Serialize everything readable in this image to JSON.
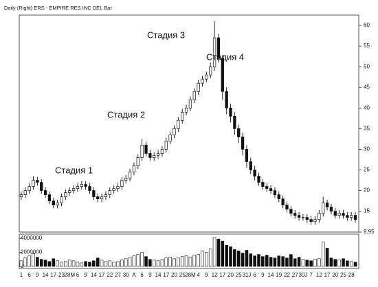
{
  "chart_data": {
    "type": "candlestick",
    "title": "Daily (Right) ERS - EMPIRE RES INC DEL Bar",
    "annotations": [
      "Стадия 1",
      "Стадия 2",
      "Стадия 3",
      "Стадия 4"
    ],
    "categories": [
      "1",
      null,
      "6",
      null,
      "9",
      null,
      "14",
      null,
      "17",
      null,
      "23",
      null,
      "28M",
      null,
      "6",
      null,
      "9",
      null,
      "14",
      null,
      "17",
      null,
      "22",
      null,
      "27",
      null,
      "30",
      null,
      "A",
      null,
      "6",
      null,
      "9",
      null,
      "14",
      null,
      "17",
      null,
      "20",
      null,
      "25",
      null,
      "28M",
      null,
      "4",
      null,
      "9",
      null,
      "12",
      null,
      "17",
      null,
      "20",
      null,
      "25",
      null,
      "31J",
      null,
      "6",
      null,
      "9",
      null,
      "14",
      null,
      "19",
      null,
      "22",
      null,
      "27",
      null,
      "30J",
      null,
      "7",
      null,
      "12",
      null,
      "17",
      null,
      "20",
      null,
      "25",
      null,
      "28",
      null
    ],
    "open": [
      18.5,
      19,
      20,
      21,
      22.5,
      22,
      20,
      19,
      17.5,
      16.5,
      17,
      18.5,
      19.5,
      20,
      20.5,
      21,
      21.5,
      21,
      20,
      18.5,
      18,
      18.5,
      19,
      20,
      20.5,
      21,
      22.5,
      23,
      24.5,
      26,
      28,
      31,
      29,
      28,
      28.5,
      29,
      30,
      32,
      33.5,
      35,
      37,
      39,
      40,
      42,
      44,
      46,
      47,
      48,
      50,
      57,
      52,
      44,
      40,
      38,
      35,
      33,
      30,
      27,
      25,
      23.5,
      22,
      21,
      20.5,
      20,
      19,
      18,
      16.5,
      15.5,
      14.5,
      14,
      13.5,
      13.5,
      13,
      12.5,
      13,
      14.5,
      17,
      16,
      15,
      14,
      14.5,
      14,
      13.5,
      14
    ],
    "high": [
      19.8,
      20.8,
      21.8,
      23.5,
      23.3,
      22.8,
      20.8,
      19.8,
      18.3,
      17.8,
      19.3,
      20.3,
      20.8,
      21.3,
      21.8,
      22.3,
      22.3,
      21.8,
      20.8,
      19.3,
      19.3,
      19.8,
      20.8,
      21.3,
      21.8,
      23.3,
      23.8,
      25.3,
      26.8,
      28.8,
      32.5,
      31.8,
      29.8,
      29.3,
      29.8,
      30.8,
      32.8,
      34.3,
      35.8,
      37.8,
      39.8,
      40.8,
      42.8,
      44.8,
      46.8,
      47.8,
      48.8,
      51,
      61,
      58,
      52.8,
      45,
      41,
      39,
      36,
      34,
      31,
      28,
      26,
      24.3,
      22.8,
      21.8,
      21.3,
      20.8,
      19.8,
      18.8,
      17.3,
      16.3,
      15.3,
      14.8,
      14.3,
      14.3,
      13.8,
      13.8,
      15.3,
      18.5,
      17.8,
      16.8,
      15.8,
      15.3,
      15.3,
      14.8,
      14.8,
      14.8
    ],
    "low": [
      17.7,
      18.2,
      19.2,
      20.2,
      21.2,
      19.2,
      18.2,
      16.7,
      15.7,
      15.7,
      16.2,
      17.7,
      18.7,
      19.2,
      19.7,
      20.2,
      20.2,
      19.2,
      17.7,
      17.2,
      17.2,
      17.7,
      18.2,
      19.2,
      19.7,
      20.2,
      21.7,
      22.2,
      23.7,
      25.2,
      27.2,
      28.2,
      27.2,
      27.2,
      27.7,
      28.2,
      29.2,
      31.2,
      32.7,
      34.2,
      36.2,
      38.2,
      39.2,
      41.2,
      43.2,
      45.2,
      46.2,
      47.2,
      49,
      51,
      42,
      38.5,
      36.5,
      33.5,
      31.5,
      28.5,
      25.5,
      24,
      22.5,
      21.2,
      20.2,
      19.7,
      19.2,
      18.2,
      17.2,
      15.7,
      14.7,
      13.7,
      13.2,
      12.7,
      12.7,
      12.2,
      11.7,
      11.7,
      12.2,
      13.7,
      15.2,
      14.2,
      13.2,
      13.2,
      13.2,
      12.7,
      12.7,
      12.2
    ],
    "close": [
      19,
      20,
      21,
      22.5,
      22,
      20,
      19,
      17.5,
      16.5,
      17,
      18.5,
      19.5,
      20,
      20.5,
      21,
      21.5,
      21,
      20,
      18.5,
      18,
      18.5,
      19,
      20,
      20.5,
      21,
      22.5,
      23,
      24.5,
      26,
      28,
      31,
      29,
      28,
      28.5,
      29,
      30,
      32,
      33.5,
      35,
      37,
      39,
      40,
      42,
      44,
      46,
      47,
      48,
      50,
      57,
      52,
      44,
      40,
      38,
      35,
      33,
      30,
      27,
      25,
      23.5,
      22,
      21,
      20.5,
      20,
      19,
      18,
      16.5,
      15.5,
      14.5,
      14,
      13.5,
      13.5,
      13,
      12.5,
      13,
      14.5,
      17,
      16,
      15,
      14,
      14.5,
      14,
      13.5,
      14,
      13
    ],
    "volume": [
      800000,
      1200000,
      1500000,
      1800000,
      1300000,
      1000000,
      900000,
      700000,
      1100000,
      800000,
      600000,
      700000,
      900000,
      800000,
      600000,
      500000,
      700000,
      600000,
      800000,
      1200000,
      900000,
      700000,
      800000,
      600000,
      700000,
      900000,
      1100000,
      1300000,
      1500000,
      1700000,
      2000000,
      1400000,
      1000000,
      900000,
      800000,
      1000000,
      1200000,
      1300000,
      1100000,
      1200000,
      1400000,
      1500000,
      1300000,
      1600000,
      1700000,
      2200000,
      2000000,
      2500000,
      4100000,
      3900000,
      3600000,
      3000000,
      2800000,
      2400000,
      2200000,
      1900000,
      2300000,
      1800000,
      1500000,
      1700000,
      1400000,
      1600000,
      1300000,
      1200000,
      1500000,
      1400000,
      1200000,
      1700000,
      1100000,
      1300000,
      1000000,
      900000,
      800000,
      1000000,
      1100000,
      3500000,
      2600000,
      1200000,
      1000000,
      900000,
      1100000,
      800000,
      700000,
      600000
    ],
    "ylim": [
      9.95,
      62.5
    ],
    "yticks": [
      9.95,
      15,
      20,
      25,
      30,
      35,
      40,
      45,
      50,
      55,
      60
    ],
    "volume_ylim": [
      0,
      4400000
    ],
    "volume_yticks": [
      0,
      2000000,
      4000000
    ],
    "up_color": "#ffffff",
    "down_color": "#111111"
  }
}
